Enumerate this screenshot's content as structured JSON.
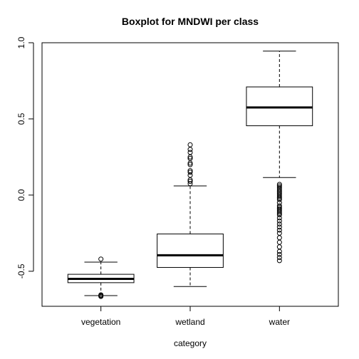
{
  "chart_data": {
    "type": "boxplot",
    "title": "Boxplot for MNDWI per class",
    "xlabel": "category",
    "ylabel": "",
    "ylim": [
      -0.73,
      1.0
    ],
    "yticks": [
      -0.5,
      0.0,
      0.5,
      1.0
    ],
    "ytick_labels": [
      "-0.5",
      "0.0",
      "0.5",
      "1.0"
    ],
    "grid": false,
    "categories": [
      "vegetation",
      "wetland",
      "water"
    ],
    "boxes": [
      {
        "category": "vegetation",
        "whisker_low": -0.66,
        "q1": -0.575,
        "median": -0.55,
        "q3": -0.52,
        "whisker_high": -0.44,
        "outliers": [
          -0.42,
          -0.655,
          -0.66,
          -0.665
        ]
      },
      {
        "category": "wetland",
        "whisker_low": -0.6,
        "q1": -0.475,
        "median": -0.395,
        "q3": -0.255,
        "whisker_high": 0.06,
        "outliers": [
          0.075,
          0.09,
          0.1,
          0.13,
          0.15,
          0.16,
          0.2,
          0.21,
          0.24,
          0.25,
          0.28,
          0.3,
          0.33
        ]
      },
      {
        "category": "water",
        "whisker_low": 0.115,
        "q1": 0.455,
        "median": 0.575,
        "q3": 0.71,
        "whisker_high": 0.945,
        "outliers": [
          0.07,
          0.06,
          0.05,
          0.04,
          0.03,
          0.02,
          0.01,
          0.0,
          -0.01,
          -0.02,
          -0.03,
          -0.05,
          -0.07,
          -0.08,
          -0.09,
          -0.1,
          -0.11,
          -0.12,
          -0.13,
          -0.15,
          -0.17,
          -0.19,
          -0.21,
          -0.23,
          -0.25,
          -0.28,
          -0.31,
          -0.34,
          -0.37,
          -0.39,
          -0.41,
          -0.43
        ]
      }
    ]
  }
}
